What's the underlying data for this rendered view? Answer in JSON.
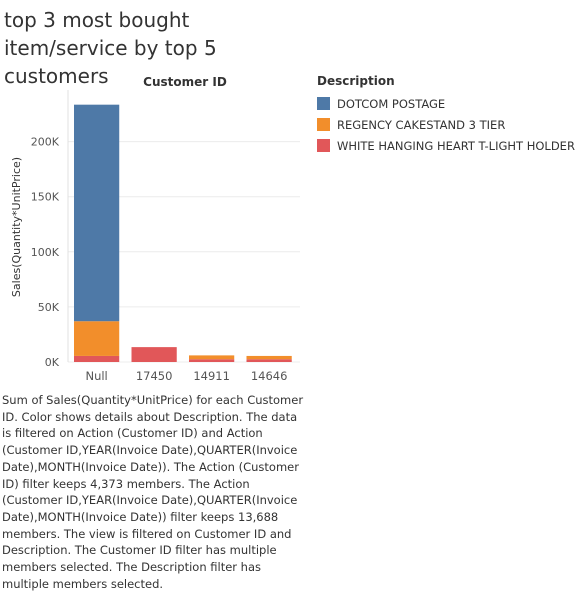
{
  "title": "top 3 most bought item/service by top 5 customers",
  "caption": "Sum of Sales(Quantity*UnitPrice) for each Customer ID.  Color shows details about Description. The data is filtered on Action (Customer ID) and Action (Customer ID,YEAR(Invoice Date),QUARTER(Invoice Date),MONTH(Invoice Date)). The Action (Customer ID) filter keeps 4,373 members. The Action (Customer ID,YEAR(Invoice Date),QUARTER(Invoice Date),MONTH(Invoice Date)) filter keeps 13,688 members. The view is filtered on Customer ID and Description. The Customer ID filter has multiple members selected. The Description filter has multiple members selected.",
  "legend": {
    "title": "Description",
    "items": [
      {
        "label": "DOTCOM POSTAGE",
        "color": "#4e79a7"
      },
      {
        "label": "REGENCY CAKESTAND 3 TIER",
        "color": "#f28e2b"
      },
      {
        "label": "WHITE HANGING HEART T-LIGHT HOLDER",
        "color": "#e15759"
      }
    ]
  },
  "chart_data": {
    "type": "bar",
    "stacked": true,
    "title": "top 3 most bought item/service by top 5 customers",
    "column_header": "Customer ID",
    "xlabel": "",
    "ylabel": "Sales(Quantity*UnitPrice)",
    "categories": [
      "Null",
      "17450",
      "14911",
      "14646"
    ],
    "series": [
      {
        "name": "WHITE HANGING HEART T-LIGHT HOLDER",
        "color": "#e15759",
        "values": [
          5500,
          13500,
          2500,
          2500
        ]
      },
      {
        "name": "REGENCY CAKESTAND 3 TIER",
        "color": "#f28e2b",
        "values": [
          31500,
          0,
          3500,
          3000
        ]
      },
      {
        "name": "DOTCOM POSTAGE",
        "color": "#4e79a7",
        "values": [
          196500,
          0,
          0,
          0
        ]
      }
    ],
    "yticks": [
      0,
      50000,
      100000,
      150000,
      200000
    ],
    "ytick_labels": [
      "0K",
      "50K",
      "100K",
      "150K",
      "200K"
    ],
    "ylim": [
      0,
      245000
    ],
    "grid": true,
    "legend_position": "right"
  }
}
